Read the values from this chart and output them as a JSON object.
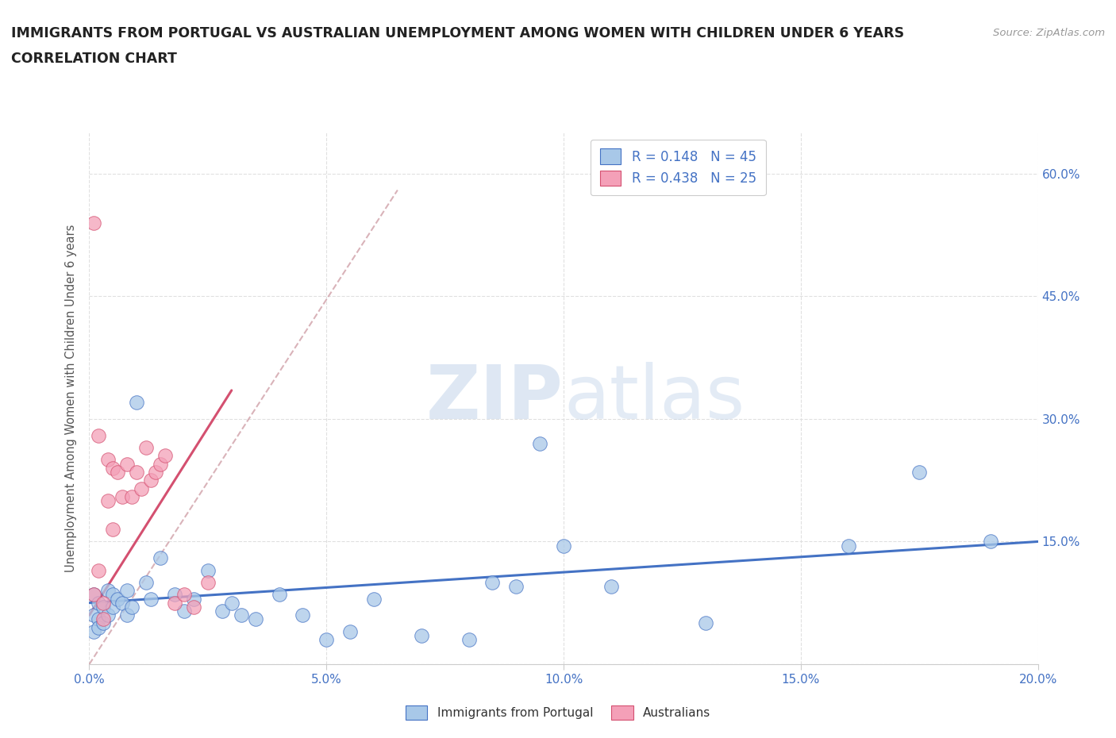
{
  "title_line1": "IMMIGRANTS FROM PORTUGAL VS AUSTRALIAN UNEMPLOYMENT AMONG WOMEN WITH CHILDREN UNDER 6 YEARS",
  "title_line2": "CORRELATION CHART",
  "source": "Source: ZipAtlas.com",
  "ylabel": "Unemployment Among Women with Children Under 6 years",
  "xlim": [
    0.0,
    0.2
  ],
  "ylim": [
    0.0,
    0.65
  ],
  "xticks": [
    0.0,
    0.05,
    0.1,
    0.15,
    0.2
  ],
  "yticks": [
    0.0,
    0.15,
    0.3,
    0.45,
    0.6
  ],
  "xtick_labels": [
    "0.0%",
    "5.0%",
    "10.0%",
    "15.0%",
    "20.0%"
  ],
  "ytick_labels": [
    "",
    "15.0%",
    "30.0%",
    "45.0%",
    "60.0%"
  ],
  "R_blue": 0.148,
  "N_blue": 45,
  "R_pink": 0.438,
  "N_pink": 25,
  "blue_scatter_x": [
    0.001,
    0.001,
    0.001,
    0.002,
    0.002,
    0.002,
    0.003,
    0.003,
    0.004,
    0.004,
    0.005,
    0.005,
    0.006,
    0.007,
    0.008,
    0.008,
    0.009,
    0.01,
    0.012,
    0.013,
    0.015,
    0.018,
    0.02,
    0.022,
    0.025,
    0.028,
    0.03,
    0.032,
    0.035,
    0.04,
    0.045,
    0.05,
    0.055,
    0.06,
    0.07,
    0.08,
    0.085,
    0.09,
    0.095,
    0.1,
    0.11,
    0.13,
    0.16,
    0.175,
    0.19
  ],
  "blue_scatter_y": [
    0.085,
    0.06,
    0.04,
    0.075,
    0.055,
    0.045,
    0.07,
    0.05,
    0.09,
    0.06,
    0.085,
    0.07,
    0.08,
    0.075,
    0.06,
    0.09,
    0.07,
    0.32,
    0.1,
    0.08,
    0.13,
    0.085,
    0.065,
    0.08,
    0.115,
    0.065,
    0.075,
    0.06,
    0.055,
    0.085,
    0.06,
    0.03,
    0.04,
    0.08,
    0.035,
    0.03,
    0.1,
    0.095,
    0.27,
    0.145,
    0.095,
    0.05,
    0.145,
    0.235,
    0.15
  ],
  "pink_scatter_x": [
    0.001,
    0.001,
    0.002,
    0.002,
    0.003,
    0.003,
    0.004,
    0.004,
    0.005,
    0.005,
    0.006,
    0.007,
    0.008,
    0.009,
    0.01,
    0.011,
    0.012,
    0.013,
    0.014,
    0.015,
    0.016,
    0.018,
    0.02,
    0.022,
    0.025
  ],
  "pink_scatter_y": [
    0.54,
    0.085,
    0.28,
    0.115,
    0.075,
    0.055,
    0.25,
    0.2,
    0.165,
    0.24,
    0.235,
    0.205,
    0.245,
    0.205,
    0.235,
    0.215,
    0.265,
    0.225,
    0.235,
    0.245,
    0.255,
    0.075,
    0.085,
    0.07,
    0.1
  ],
  "blue_line_x": [
    0.0,
    0.2
  ],
  "blue_line_y": [
    0.075,
    0.15
  ],
  "pink_line_x": [
    0.0,
    0.03
  ],
  "pink_line_y": [
    0.06,
    0.335
  ],
  "diag_line_x": [
    0.0,
    0.065
  ],
  "diag_line_y": [
    0.0,
    0.58
  ],
  "blue_color": "#a8c8e8",
  "pink_color": "#f4a0b8",
  "blue_line_color": "#4472c4",
  "pink_line_color": "#d45070",
  "diag_color": "#d0a0a8",
  "legend_label_blue": "Immigrants from Portugal",
  "legend_label_pink": "Australians",
  "watermark_zip": "ZIP",
  "watermark_atlas": "atlas",
  "background_color": "#ffffff",
  "grid_color": "#e0e0e0",
  "title_color": "#222222",
  "axis_label_color": "#555555",
  "tick_label_color": "#4472c4"
}
